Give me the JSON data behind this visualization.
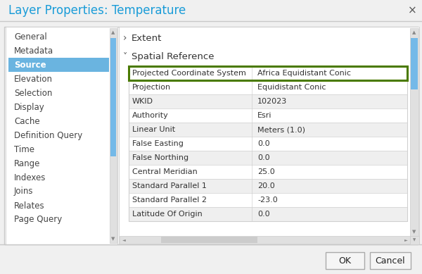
{
  "title": "Layer Properties: Temperature",
  "close_symbol": "×",
  "left_menu": [
    "General",
    "Metadata",
    "Source",
    "Elevation",
    "Selection",
    "Display",
    "Cache",
    "Definition Query",
    "Time",
    "Range",
    "Indexes",
    "Joins",
    "Relates",
    "Page Query"
  ],
  "selected_menu": "Source",
  "extent_label": "Extent",
  "spatial_ref_label": "Spatial Reference",
  "table_rows": [
    [
      "Projected Coordinate System",
      "Africa Equidistant Conic"
    ],
    [
      "Projection",
      "Equidistant Conic"
    ],
    [
      "WKID",
      "102023"
    ],
    [
      "Authority",
      "Esri"
    ],
    [
      "Linear Unit",
      "Meters (1.0)"
    ],
    [
      "False Easting",
      "0.0"
    ],
    [
      "False Northing",
      "0.0"
    ],
    [
      "Central Meridian",
      "25.0"
    ],
    [
      "Standard Parallel 1",
      "20.0"
    ],
    [
      "Standard Parallel 2",
      "-23.0"
    ],
    [
      "Latitude Of Origin",
      "0.0"
    ]
  ],
  "highlighted_row": 0,
  "button_ok": "OK",
  "button_cancel": "Cancel",
  "outer_bg": "#d6d6d6",
  "dialog_bg": "#f0f0f0",
  "title_text_color": "#1a9cd8",
  "left_panel_bg": "#ffffff",
  "selected_item_bg": "#6ab4e0",
  "selected_item_color": "#ffffff",
  "menu_item_color": "#444444",
  "scrollbar_track": "#e0e0e0",
  "scrollbar_thumb": "#74b9e8",
  "right_panel_bg": "#ffffff",
  "row_alt_bg": "#efefef",
  "row_bg": "#ffffff",
  "highlight_border": "#4a7a00",
  "highlight_fill": "#ffffff",
  "table_line_color": "#d0d0d0",
  "section_text_color": "#333333",
  "button_bg": "#f5f5f5",
  "button_border": "#aaaaaa",
  "panel_border": "#c8c8c8"
}
